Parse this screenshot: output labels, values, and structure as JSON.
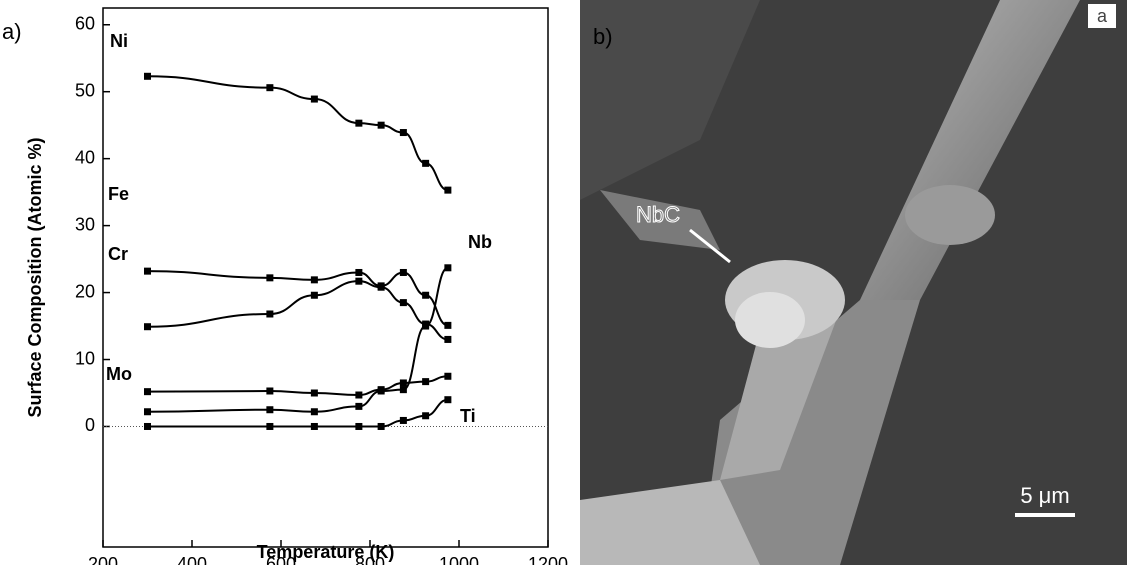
{
  "panel_labels": [
    "a)",
    "b)"
  ],
  "chart_data": {
    "type": "line",
    "x_label": "Temperature (K)",
    "y_label": "Surface Composition (Atomic %)",
    "x": [
      300,
      575,
      675,
      775,
      825,
      875,
      925,
      975
    ],
    "series": [
      {
        "name": "Ni",
        "color": "#000000",
        "values": [
          52.3,
          50.6,
          48.9,
          45.3,
          45.0,
          43.9,
          39.3,
          35.3
        ]
      },
      {
        "name": "Fe",
        "color": "#000000",
        "values": [
          23.2,
          22.2,
          21.9,
          23.0,
          21.0,
          23.0,
          19.6,
          15.1
        ]
      },
      {
        "name": "Cr",
        "color": "#000000",
        "values": [
          14.9,
          16.8,
          19.6,
          21.7,
          20.8,
          18.5,
          15.3,
          13.0
        ]
      },
      {
        "name": "Mo",
        "color": "#000000",
        "values": [
          5.2,
          5.3,
          5.0,
          4.7,
          5.5,
          6.5,
          6.7,
          7.5
        ]
      },
      {
        "name": "Nb",
        "color": "#000000",
        "values": [
          2.2,
          2.5,
          2.2,
          3.0,
          5.3,
          5.5,
          15.0,
          23.7
        ]
      },
      {
        "name": "Ti",
        "color": "#000000",
        "values": [
          0,
          0,
          0,
          0,
          0,
          0.9,
          1.6,
          4.0
        ]
      }
    ],
    "xlim": [
      200,
      1200
    ],
    "xticks": [
      200,
      400,
      600,
      800,
      1000,
      1200
    ],
    "ylim": [
      -18,
      62.5
    ],
    "yticks": [
      0,
      10,
      20,
      30,
      40,
      50,
      60
    ],
    "zero_line": true
  },
  "image": {
    "annotation": "NbC",
    "scale_bar": "5 μm",
    "corner_label": "a"
  }
}
